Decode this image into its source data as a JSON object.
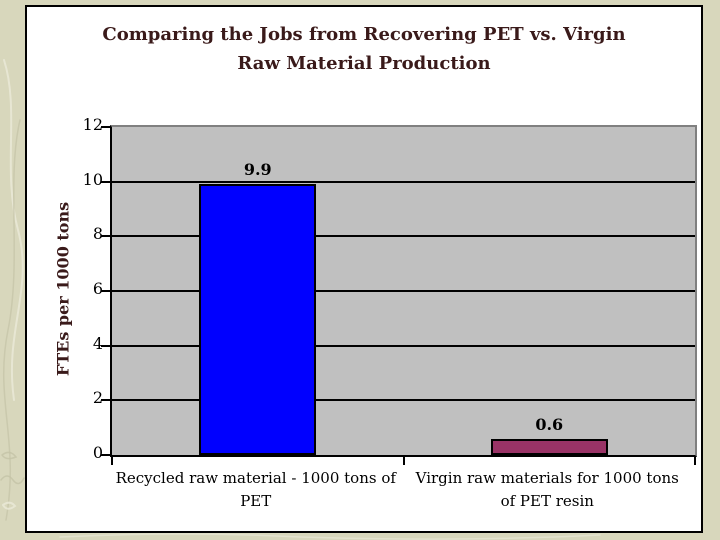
{
  "slide": {
    "title_lines": [
      "Comparing the Jobs from Recovering PET vs. Virgin",
      "Raw Material Production"
    ]
  },
  "chart_data": {
    "type": "bar",
    "title": "Comparing the Jobs from Recovering PET vs. Virgin Raw Material Production",
    "categories": [
      "Recycled raw material - 1000 tons of PET",
      "Virgin raw materials for 1000 tons of PET resin"
    ],
    "category_label_lines": [
      [
        "Recycled raw material - 1000 tons of",
        "PET"
      ],
      [
        "Virgin raw materials for 1000 tons",
        "of PET resin"
      ]
    ],
    "values": [
      9.9,
      0.6
    ],
    "data_labels": [
      "9.9",
      "0.6"
    ],
    "bar_colors": [
      "#0000FF",
      "#993366"
    ],
    "ylabel": "FTEs per 1000 tons",
    "xlabel": "",
    "ylim": [
      0,
      12
    ],
    "yticks": [
      0,
      2,
      4,
      6,
      8,
      10,
      12
    ],
    "grid": true,
    "legend": false,
    "plot_background": "#C0C0C0"
  },
  "colors": {
    "page_background": "#D8D7BC",
    "texture_light": "#E9E8D5",
    "texture_dark": "#C4C3A6",
    "panel_background": "#FFFFFF",
    "panel_border": "#000000",
    "plot_border": "#808080",
    "axis": "#000000",
    "gridline": "#000000",
    "title_text": "#3A1A1A",
    "axis_label_text": "#3A1A1A",
    "tick_text": "#000000",
    "category_text": "#000000",
    "data_label_text": "#000000"
  }
}
